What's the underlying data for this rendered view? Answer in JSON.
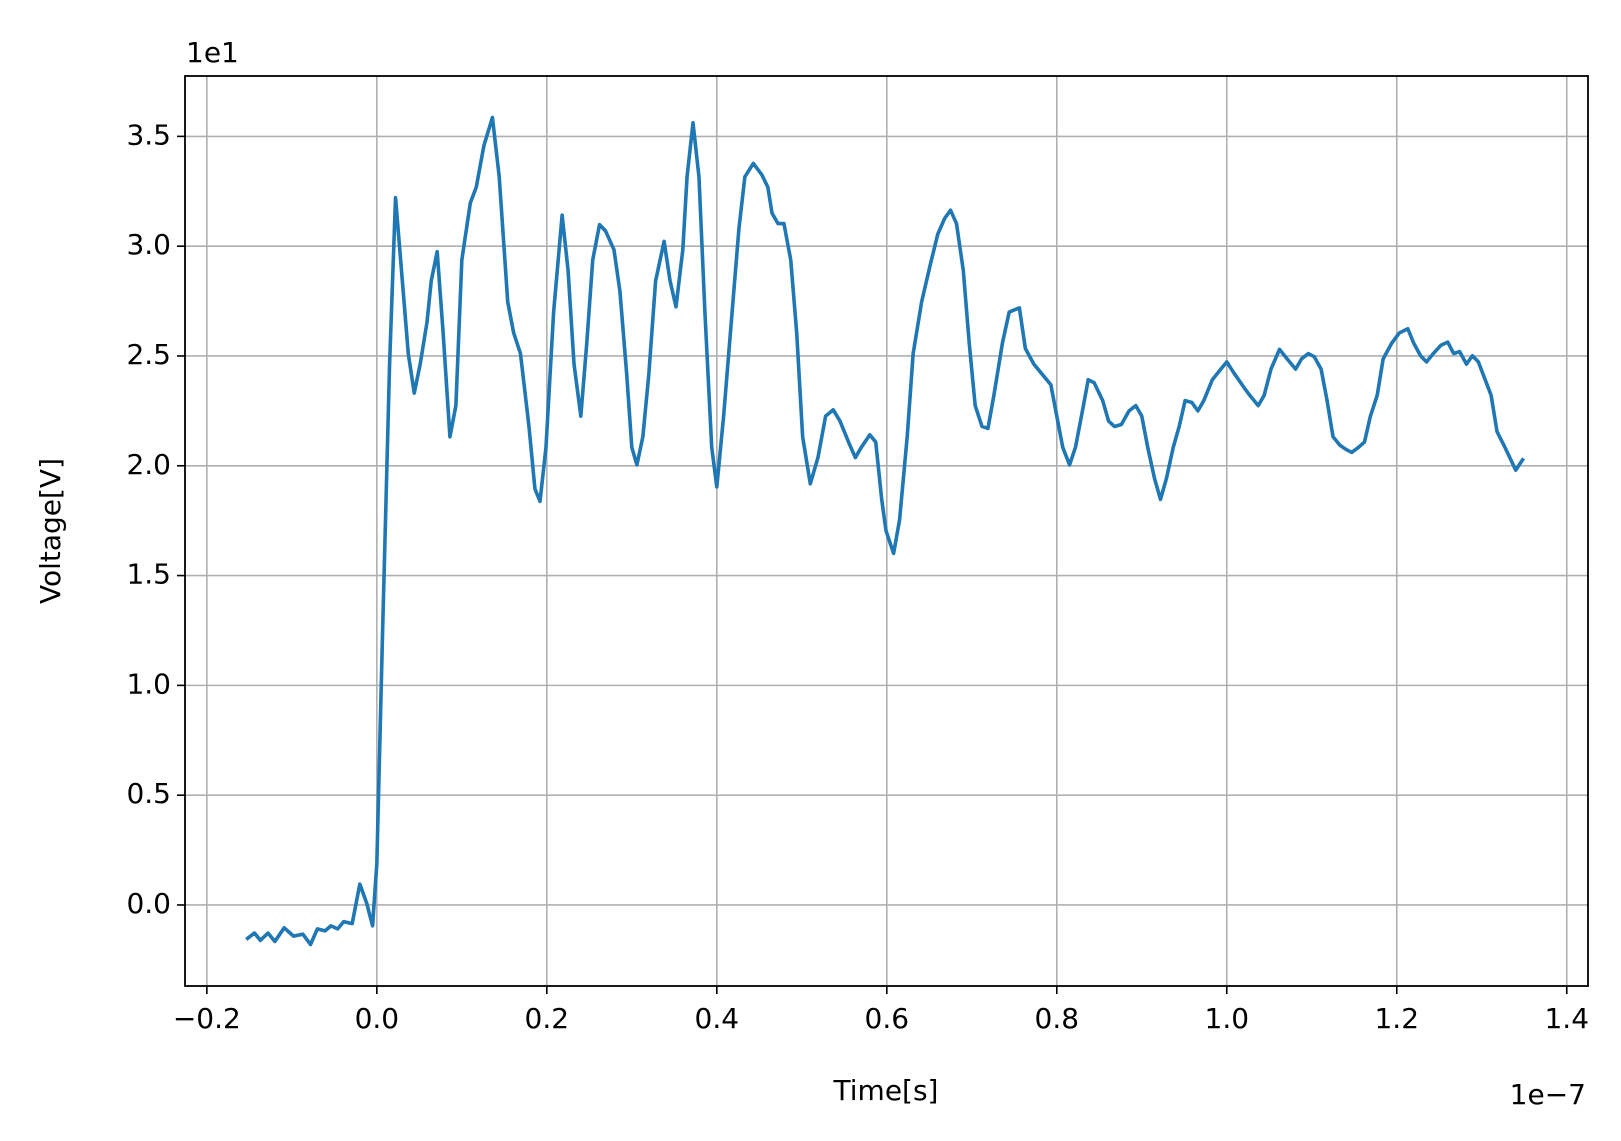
{
  "chart_data": {
    "type": "line",
    "x_label": "Time[s]",
    "y_label": "Voltage[V]",
    "x_offset_label": "1e−7",
    "y_offset_label": "1e1",
    "grid": true,
    "xlim": [
      -0.2257,
      1.425
    ],
    "ylim": [
      -0.369,
      3.775
    ],
    "xticks": [
      {
        "value": -0.2,
        "label": "−0.2"
      },
      {
        "value": 0,
        "label": "0.0"
      },
      0.2,
      0.4,
      0.6,
      0.8,
      {
        "value": 1,
        "label": "1.0"
      },
      1.2,
      1.4
    ],
    "yticks": [
      {
        "value": 0,
        "label": "0.0"
      },
      0.5,
      {
        "value": 1,
        "label": "1.0"
      },
      1.5,
      {
        "value": 2,
        "label": "2.0"
      },
      2.5,
      {
        "value": 3,
        "label": "3.0"
      },
      3.5
    ],
    "color": "#1f77b4",
    "x": [
      -0.152,
      -0.144,
      -0.137,
      -0.128,
      -0.12,
      -0.109,
      -0.098,
      -0.087,
      -0.078,
      -0.07,
      -0.061,
      -0.054,
      -0.046,
      -0.039,
      -0.029,
      -0.02,
      -0.012,
      -0.005,
      0.0,
      0.007,
      0.015,
      0.022,
      0.029,
      0.037,
      0.044,
      0.051,
      0.059,
      0.064,
      0.071,
      0.078,
      0.086,
      0.093,
      0.1,
      0.11,
      0.117,
      0.126,
      0.136,
      0.144,
      0.154,
      0.161,
      0.169,
      0.179,
      0.186,
      0.192,
      0.199,
      0.208,
      0.218,
      0.225,
      0.232,
      0.24,
      0.247,
      0.254,
      0.262,
      0.269,
      0.279,
      0.286,
      0.294,
      0.3,
      0.306,
      0.313,
      0.32,
      0.328,
      0.338,
      0.345,
      0.352,
      0.36,
      0.365,
      0.372,
      0.379,
      0.386,
      0.394,
      0.4,
      0.408,
      0.418,
      0.426,
      0.433,
      0.443,
      0.453,
      0.46,
      0.465,
      0.472,
      0.479,
      0.487,
      0.494,
      0.501,
      0.51,
      0.519,
      0.528,
      0.537,
      0.545,
      0.555,
      0.563,
      0.57,
      0.58,
      0.587,
      0.594,
      0.599,
      0.608,
      0.615,
      0.624,
      0.631,
      0.641,
      0.651,
      0.66,
      0.668,
      0.675,
      0.682,
      0.69,
      0.697,
      0.704,
      0.712,
      0.719,
      0.726,
      0.736,
      0.744,
      0.756,
      0.763,
      0.773,
      0.783,
      0.793,
      0.8,
      0.807,
      0.815,
      0.822,
      0.829,
      0.837,
      0.844,
      0.854,
      0.861,
      0.868,
      0.876,
      0.885,
      0.893,
      0.9,
      0.907,
      0.915,
      0.922,
      0.929,
      0.937,
      0.944,
      0.951,
      0.959,
      0.966,
      0.973,
      0.983,
      0.993,
      1.0,
      1.008,
      1.018,
      1.027,
      1.037,
      1.044,
      1.052,
      1.062,
      1.071,
      1.081,
      1.088,
      1.096,
      1.103,
      1.111,
      1.118,
      1.125,
      1.133,
      1.14,
      1.147,
      1.155,
      1.162,
      1.169,
      1.177,
      1.184,
      1.194,
      1.203,
      1.213,
      1.22,
      1.228,
      1.235,
      1.243,
      1.252,
      1.26,
      1.267,
      1.274,
      1.282,
      1.289,
      1.296,
      1.304,
      1.311,
      1.318,
      1.326,
      1.333,
      1.34,
      1.348
    ],
    "values": [
      -0.152,
      -0.128,
      -0.161,
      -0.128,
      -0.166,
      -0.104,
      -0.142,
      -0.133,
      -0.18,
      -0.109,
      -0.118,
      -0.095,
      -0.109,
      -0.076,
      -0.085,
      0.095,
      0.009,
      -0.095,
      0.189,
      1.279,
      2.463,
      3.221,
      2.89,
      2.511,
      2.331,
      2.463,
      2.653,
      2.842,
      2.975,
      2.605,
      2.132,
      2.274,
      2.937,
      3.197,
      3.269,
      3.458,
      3.586,
      3.316,
      2.747,
      2.605,
      2.511,
      2.179,
      1.895,
      1.838,
      2.084,
      2.7,
      3.141,
      2.89,
      2.463,
      2.226,
      2.558,
      2.937,
      3.098,
      3.07,
      2.984,
      2.795,
      2.416,
      2.084,
      2.004,
      2.132,
      2.416,
      2.842,
      3.022,
      2.842,
      2.724,
      2.984,
      3.316,
      3.562,
      3.316,
      2.7,
      2.084,
      1.904,
      2.226,
      2.7,
      3.079,
      3.316,
      3.377,
      3.325,
      3.269,
      3.15,
      3.103,
      3.103,
      2.937,
      2.605,
      2.132,
      1.918,
      2.037,
      2.226,
      2.255,
      2.203,
      2.108,
      2.037,
      2.084,
      2.141,
      2.108,
      1.847,
      1.705,
      1.601,
      1.753,
      2.132,
      2.511,
      2.747,
      2.913,
      3.055,
      3.126,
      3.164,
      3.103,
      2.89,
      2.558,
      2.274,
      2.179,
      2.17,
      2.321,
      2.558,
      2.7,
      2.719,
      2.534,
      2.463,
      2.416,
      2.369,
      2.226,
      2.084,
      2.004,
      2.084,
      2.226,
      2.392,
      2.378,
      2.297,
      2.203,
      2.179,
      2.188,
      2.25,
      2.274,
      2.226,
      2.084,
      1.942,
      1.847,
      1.942,
      2.084,
      2.179,
      2.297,
      2.288,
      2.25,
      2.297,
      2.392,
      2.44,
      2.473,
      2.425,
      2.369,
      2.321,
      2.274,
      2.321,
      2.44,
      2.53,
      2.487,
      2.44,
      2.487,
      2.511,
      2.496,
      2.44,
      2.297,
      2.132,
      2.094,
      2.075,
      2.061,
      2.084,
      2.108,
      2.226,
      2.321,
      2.487,
      2.558,
      2.605,
      2.624,
      2.558,
      2.501,
      2.473,
      2.511,
      2.549,
      2.563,
      2.511,
      2.52,
      2.463,
      2.501,
      2.473,
      2.392,
      2.321,
      2.155,
      2.094,
      2.037,
      1.98,
      2.027
    ]
  }
}
